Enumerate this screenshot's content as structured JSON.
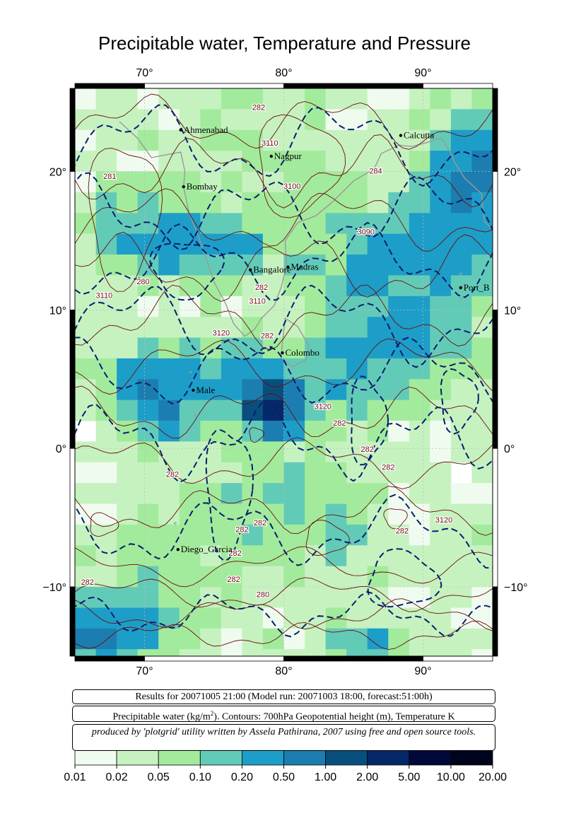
{
  "title": "Precipitable water, Temperature and Pressure",
  "map": {
    "lon_range": [
      65,
      95
    ],
    "lat_range": [
      -15,
      26
    ],
    "lon_ticks": [
      {
        "value": 70,
        "label": "70°"
      },
      {
        "value": 80,
        "label": "80°"
      },
      {
        "value": 90,
        "label": "90°"
      }
    ],
    "lat_ticks": [
      {
        "value": 20,
        "label": "20°"
      },
      {
        "value": 10,
        "label": "10°"
      },
      {
        "value": 0,
        "label": "0°"
      },
      {
        "value": -10,
        "label": "−10°"
      }
    ],
    "grid": true,
    "colors": {
      "coast": "#999999",
      "pressure_contour": "#0a1e6e",
      "temperature_contour": "#6b0d0d",
      "contour_label": "#6b0d0d",
      "grid": "#bbbbbb"
    },
    "cities": [
      {
        "name": "Ahmenabad",
        "lon": 72.6,
        "lat": 23.0
      },
      {
        "name": "Calcutta",
        "lon": 88.4,
        "lat": 22.6
      },
      {
        "name": "Nagpur",
        "lon": 79.1,
        "lat": 21.1
      },
      {
        "name": "Bombay",
        "lon": 72.8,
        "lat": 18.9
      },
      {
        "name": "Bangalore",
        "lon": 77.6,
        "lat": 12.9
      },
      {
        "name": "Madras",
        "lon": 80.3,
        "lat": 13.1
      },
      {
        "name": "Port_B",
        "lon": 92.7,
        "lat": 11.6
      },
      {
        "name": "Colombo",
        "lon": 79.9,
        "lat": 6.9
      },
      {
        "name": "Male",
        "lon": 73.5,
        "lat": 4.2
      },
      {
        "name": "Diego_Garcia",
        "lon": 72.4,
        "lat": -7.3
      }
    ],
    "contour_labels": [
      {
        "text": "282",
        "lon": 78.2,
        "lat": 24.6
      },
      {
        "text": "3110",
        "lon": 79.0,
        "lat": 22.0
      },
      {
        "text": "281",
        "lon": 67.5,
        "lat": 19.6
      },
      {
        "text": "3100",
        "lon": 80.6,
        "lat": 18.9
      },
      {
        "text": "284",
        "lon": 86.6,
        "lat": 20.0
      },
      {
        "text": "3090",
        "lon": 85.9,
        "lat": 15.6
      },
      {
        "text": "280",
        "lon": 69.9,
        "lat": 12.0
      },
      {
        "text": "3110",
        "lon": 67.1,
        "lat": 11.0
      },
      {
        "text": "282",
        "lon": 78.4,
        "lat": 11.6
      },
      {
        "text": "3110",
        "lon": 78.1,
        "lat": 10.6
      },
      {
        "text": "3120",
        "lon": 75.5,
        "lat": 8.3
      },
      {
        "text": "282",
        "lon": 78.8,
        "lat": 8.1
      },
      {
        "text": "3120",
        "lon": 82.8,
        "lat": 3.0
      },
      {
        "text": "282",
        "lon": 84.0,
        "lat": 1.8
      },
      {
        "text": "282",
        "lon": 86.0,
        "lat": -0.1
      },
      {
        "text": "282",
        "lon": 87.5,
        "lat": -1.4
      },
      {
        "text": "282",
        "lon": 72.0,
        "lat": -1.9
      },
      {
        "text": "3120",
        "lon": 91.5,
        "lat": -5.2
      },
      {
        "text": "282",
        "lon": 77.0,
        "lat": -5.9
      },
      {
        "text": "282",
        "lon": 78.3,
        "lat": -5.4
      },
      {
        "text": "282",
        "lon": 88.5,
        "lat": -6.0
      },
      {
        "text": "282",
        "lon": 76.5,
        "lat": -7.6
      },
      {
        "text": "282",
        "lon": 65.9,
        "lat": -9.7
      },
      {
        "text": "282",
        "lon": 76.4,
        "lat": -9.5
      },
      {
        "text": "280",
        "lon": 78.5,
        "lat": -10.6
      }
    ]
  },
  "precip_field": {
    "units": "kg/m²",
    "cell_deg": 1.5,
    "blobs": [
      {
        "lon": 79.1,
        "lat": 3.2,
        "amp": 2.0,
        "rlon": 1.5,
        "rlat": 1.5
      },
      {
        "lon": 77.0,
        "lat": 4.2,
        "amp": 0.25,
        "rlon": 5.5,
        "rlat": 2.5
      },
      {
        "lon": 71.0,
        "lat": 4.5,
        "amp": 0.35,
        "rlon": 3.0,
        "rlat": 2.0
      },
      {
        "lon": 71.5,
        "lat": 2.2,
        "amp": 0.4,
        "rlon": 1.2,
        "rlat": 1.2
      },
      {
        "lon": 74.0,
        "lat": 14.5,
        "amp": 0.25,
        "rlon": 4.5,
        "rlat": 2.0
      },
      {
        "lon": 70.0,
        "lat": 16.0,
        "amp": 0.18,
        "rlon": 3.5,
        "rlat": 2.5
      },
      {
        "lon": 93.5,
        "lat": 20.0,
        "amp": 0.6,
        "rlon": 2.0,
        "rlat": 3.0
      },
      {
        "lon": 92.0,
        "lat": 15.0,
        "amp": 0.3,
        "rlon": 4.0,
        "rlat": 3.0
      },
      {
        "lon": 88.0,
        "lat": 12.5,
        "amp": 0.2,
        "rlon": 4.5,
        "rlat": 3.5
      },
      {
        "lon": 86.0,
        "lat": 6.5,
        "amp": 0.2,
        "rlon": 3.5,
        "rlat": 3.0
      },
      {
        "lon": 91.0,
        "lat": 8.0,
        "amp": 0.12,
        "rlon": 3.0,
        "rlat": 3.0
      },
      {
        "lon": 68.0,
        "lat": -13.0,
        "amp": 0.35,
        "rlon": 3.5,
        "rlat": 2.0
      },
      {
        "lon": 66.2,
        "lat": -13.8,
        "amp": 0.6,
        "rlon": 1.2,
        "rlat": 1.2
      },
      {
        "lon": 84.0,
        "lat": -6.0,
        "amp": 0.25,
        "rlon": 1.2,
        "rlat": 1.5
      },
      {
        "lon": 86.0,
        "lat": -14.0,
        "amp": 0.2,
        "rlon": 2.5,
        "rlat": 1.2
      },
      {
        "lon": 79.0,
        "lat": -4.0,
        "amp": 0.08,
        "rlon": 5.0,
        "rlat": 4.0
      },
      {
        "lon": 72.0,
        "lat": -8.0,
        "amp": 0.06,
        "rlon": 4.0,
        "rlat": 4.0
      },
      {
        "lon": 82.0,
        "lat": 18.0,
        "amp": 0.05,
        "rlon": 4.0,
        "rlat": 4.0
      },
      {
        "lon": 76.0,
        "lat": 22.0,
        "amp": 0.03,
        "rlon": 4.0,
        "rlat": 3.0
      }
    ]
  },
  "info": {
    "results_line": "Results for 20071005 21:00 (Model run: 20071003 18:00, forecast:51:00h)",
    "variables_line_prefix": "Precipitable water (kg/m",
    "variables_line_sup": "2",
    "variables_line_suffix": ").  Contours: 700hPa Geopotential height (m), Temperature K",
    "credit_line": "produced by 'plotgrid' utility written by Assela Pathirana, 2007 using free and open source tools."
  },
  "colorbar": {
    "colors": [
      "#f0fbf0",
      "#c6f2c0",
      "#a3eb9c",
      "#62cbb8",
      "#1d9ec8",
      "#1c7eb0",
      "#084f7e",
      "#052868",
      "#00093a",
      "#00031c"
    ],
    "labels": [
      "0.01",
      "0.02",
      "0.05",
      "0.10",
      "0.20",
      "0.50",
      "1.00",
      "2.00",
      "5.00",
      "10.00",
      "20.00"
    ]
  }
}
